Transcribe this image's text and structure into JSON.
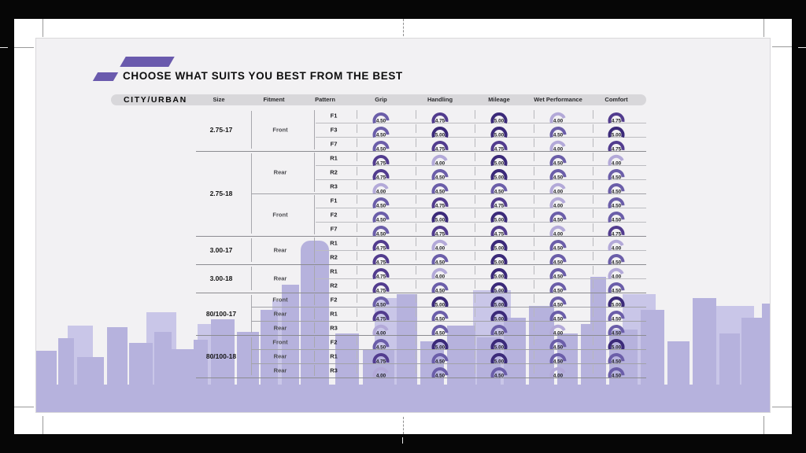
{
  "title": "CHOOSE WHAT SUITS YOU BEST FROM THE BEST",
  "category_label": "CITY/URBAN",
  "columns": [
    "Size",
    "Fitment",
    "Pattern",
    "Grip",
    "Handling",
    "Mileage",
    "Wet Performance",
    "Comfort"
  ],
  "metric_columns": [
    "Grip",
    "Handling",
    "Mileage",
    "Wet Performance",
    "Comfort"
  ],
  "rating_scale_max": "5.00",
  "rating_colors": {
    "5.00": "#3b2a79",
    "4.75": "#523c8e",
    "4.50": "#6b5ea9",
    "4.00": "#b3a9d8"
  },
  "accent_color": "#6a5aad",
  "skyline_front_color": "#b6b2dd",
  "skyline_back_color": "#c9c6e8",
  "table": {
    "sections": [
      {
        "size": "2.75-17",
        "groups": [
          {
            "fitment": "Front",
            "rows": [
              {
                "pattern": "F1",
                "values": [
                  "4.50",
                  "4.75",
                  "5.00",
                  "4.00",
                  "4.75"
                ]
              },
              {
                "pattern": "F3",
                "values": [
                  "4.50",
                  "5.00",
                  "5.00",
                  "4.50",
                  "5.00"
                ]
              },
              {
                "pattern": "F7",
                "values": [
                  "4.50",
                  "4.75",
                  "4.75",
                  "4.00",
                  "4.75"
                ]
              }
            ]
          }
        ]
      },
      {
        "size": "2.75-18",
        "groups": [
          {
            "fitment": "Rear",
            "rows": [
              {
                "pattern": "R1",
                "values": [
                  "4.75",
                  "4.00",
                  "5.00",
                  "4.50",
                  "4.00"
                ]
              },
              {
                "pattern": "R2",
                "values": [
                  "4.75",
                  "4.50",
                  "5.00",
                  "4.50",
                  "4.50"
                ]
              },
              {
                "pattern": "R3",
                "values": [
                  "4.00",
                  "4.50",
                  "4.50",
                  "4.00",
                  "4.50"
                ]
              }
            ]
          },
          {
            "fitment": "Front",
            "rows": [
              {
                "pattern": "F1",
                "values": [
                  "4.50",
                  "4.75",
                  "4.75",
                  "4.00",
                  "4.50"
                ]
              },
              {
                "pattern": "F2",
                "values": [
                  "4.50",
                  "5.00",
                  "5.00",
                  "4.50",
                  "4.50"
                ]
              },
              {
                "pattern": "F7",
                "values": [
                  "4.50",
                  "4.75",
                  "4.75",
                  "4.00",
                  "4.75"
                ]
              }
            ]
          }
        ]
      },
      {
        "size": "3.00-17",
        "groups": [
          {
            "fitment": "Rear",
            "rows": [
              {
                "pattern": "R1",
                "values": [
                  "4.75",
                  "4.00",
                  "5.00",
                  "4.50",
                  "4.00"
                ]
              },
              {
                "pattern": "R2",
                "values": [
                  "4.75",
                  "4.50",
                  "5.00",
                  "4.50",
                  "4.50"
                ]
              }
            ]
          }
        ]
      },
      {
        "size": "3.00-18",
        "groups": [
          {
            "fitment": "Rear",
            "rows": [
              {
                "pattern": "R1",
                "values": [
                  "4.75",
                  "4.00",
                  "5.00",
                  "4.50",
                  "4.00"
                ]
              },
              {
                "pattern": "R2",
                "values": [
                  "4.75",
                  "4.50",
                  "5.00",
                  "4.50",
                  "4.50"
                ]
              }
            ]
          }
        ]
      },
      {
        "size": "80/100-17",
        "groups": [
          {
            "fitment": "Front",
            "rows": [
              {
                "pattern": "F2",
                "values": [
                  "4.50",
                  "5.00",
                  "5.00",
                  "4.50",
                  "5.00"
                ]
              }
            ]
          },
          {
            "fitment": "Rear",
            "rows": [
              {
                "pattern": "R1",
                "values": [
                  "4.75",
                  "4.50",
                  "5.00",
                  "4.50",
                  "4.50"
                ]
              }
            ]
          },
          {
            "fitment": "Rear",
            "rows": [
              {
                "pattern": "R3",
                "values": [
                  "4.00",
                  "4.50",
                  "4.50",
                  "4.00",
                  "4.50"
                ]
              }
            ]
          }
        ]
      },
      {
        "size": "80/100-18",
        "groups": [
          {
            "fitment": "Front",
            "rows": [
              {
                "pattern": "F2",
                "values": [
                  "4.50",
                  "5.00",
                  "5.00",
                  "4.50",
                  "5.00"
                ]
              }
            ]
          },
          {
            "fitment": "Rear",
            "rows": [
              {
                "pattern": "R1",
                "values": [
                  "4.75",
                  "4.50",
                  "5.00",
                  "4.50",
                  "4.50"
                ]
              }
            ]
          },
          {
            "fitment": "Rear",
            "rows": [
              {
                "pattern": "R3",
                "values": [
                  "4.00",
                  "4.50",
                  "4.50",
                  "4.00",
                  "4.50"
                ]
              }
            ]
          }
        ]
      }
    ]
  }
}
